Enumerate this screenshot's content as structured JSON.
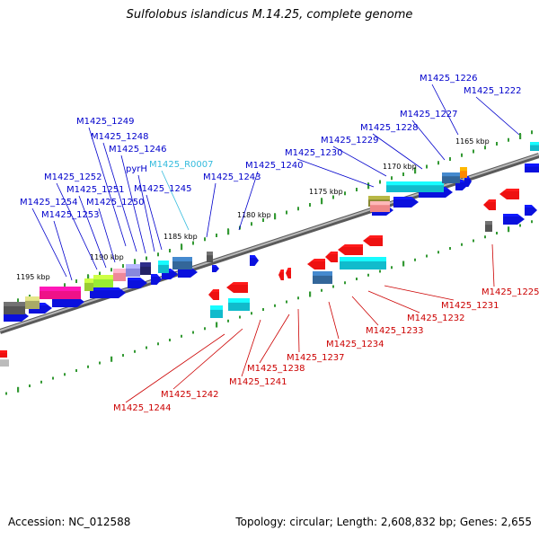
{
  "title": "Sulfolobus islandicus M.14.25, complete genome",
  "footer": {
    "accession": "Accession: NC_012588",
    "summary": "Topology: circular; Length: 2,608,832 bp; Genes: 2,655"
  },
  "colors": {
    "forward_label": "#0000cc",
    "reverse_label": "#cc0000",
    "rna_label": "#33bbdd",
    "backbone": "#888888",
    "tick": "#339933"
  },
  "kbp_labels": [
    "1165 kbp",
    "1170 kbp",
    "1175 kbp",
    "1180 kbp",
    "1185 kbp",
    "1190 kbp",
    "1195 kbp"
  ],
  "forward_labels": [
    "M1425_1226",
    "M1425_1222",
    "M1425_1227",
    "M1425_1228",
    "M1425_1229",
    "M1425_1230",
    "M1425_1240",
    "M1425_1243",
    "M1425_R0007",
    "M1425_1249",
    "M1425_1248",
    "M1425_1246",
    "pyrH",
    "M1425_1245",
    "M1425_1252",
    "M1425_1251",
    "M1425_1254",
    "M1425_1250",
    "M1425_1253"
  ],
  "reverse_labels": [
    "M1425_1225",
    "M1425_1231",
    "M1425_1232",
    "M1425_1233",
    "M1425_1234",
    "M1425_1237",
    "M1425_1238",
    "M1425_1241",
    "M1425_1242",
    "M1425_1244"
  ]
}
